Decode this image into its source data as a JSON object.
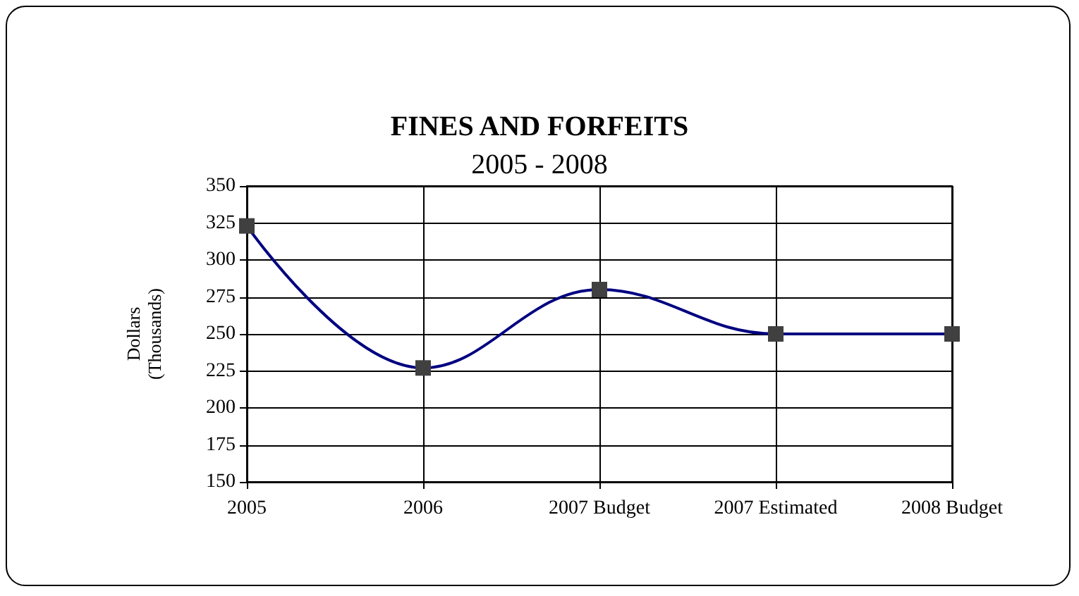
{
  "chart_data": {
    "type": "line",
    "title": "FINES AND FORFEITS",
    "subtitle": "2005 - 2008",
    "ylabel": "Dollars\n(Thousands)",
    "categories": [
      "2005",
      "2006",
      "2007 Budget",
      "2007 Estimated",
      "2008 Budget"
    ],
    "series": [
      {
        "color": "#000080",
        "values": [
          323,
          227,
          280,
          250,
          250
        ]
      }
    ],
    "ylim": [
      150,
      350
    ],
    "yticks": [
      150,
      175,
      200,
      225,
      250,
      275,
      300,
      325,
      350
    ],
    "grid": true,
    "marker": "square",
    "line_style": "solid"
  }
}
